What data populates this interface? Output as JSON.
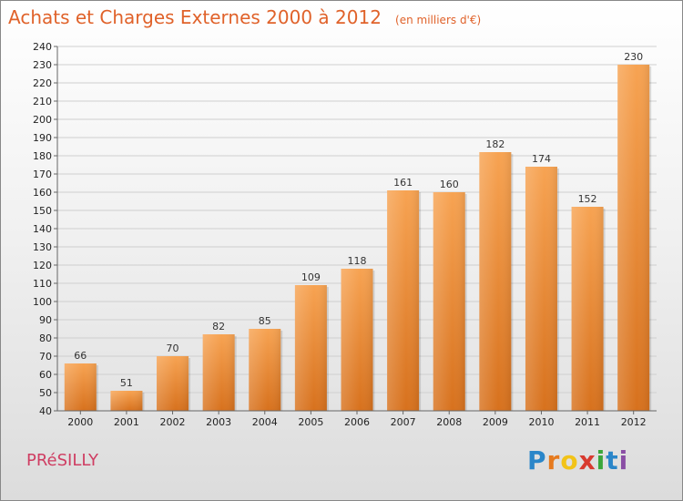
{
  "title": "Achats et Charges Externes 2000 à 2012",
  "unit": "(en milliers d'€)",
  "town": "PRéSILLY",
  "logo": {
    "letters": [
      "P",
      "r",
      "o",
      "x",
      "i",
      "t",
      "i"
    ],
    "colors": [
      "#2a86c9",
      "#e67a1e",
      "#f2c318",
      "#d83a2f",
      "#3aa63a",
      "#2a86c9",
      "#8a4fa5"
    ]
  },
  "colors": {
    "bar_top": "#f7a352",
    "bar_bottom": "#d7711d",
    "title": "#e0622a",
    "town": "#cf3d62"
  },
  "chart_data": {
    "type": "bar",
    "title": "Achats et Charges Externes 2000 à 2012",
    "categories": [
      "2000",
      "2001",
      "2002",
      "2003",
      "2004",
      "2005",
      "2006",
      "2007",
      "2008",
      "2009",
      "2010",
      "2011",
      "2012"
    ],
    "values": [
      66,
      51,
      70,
      82,
      85,
      109,
      118,
      161,
      160,
      182,
      174,
      152,
      230
    ],
    "ylim": [
      40,
      240
    ],
    "ytick_step": 10,
    "grid": true
  }
}
